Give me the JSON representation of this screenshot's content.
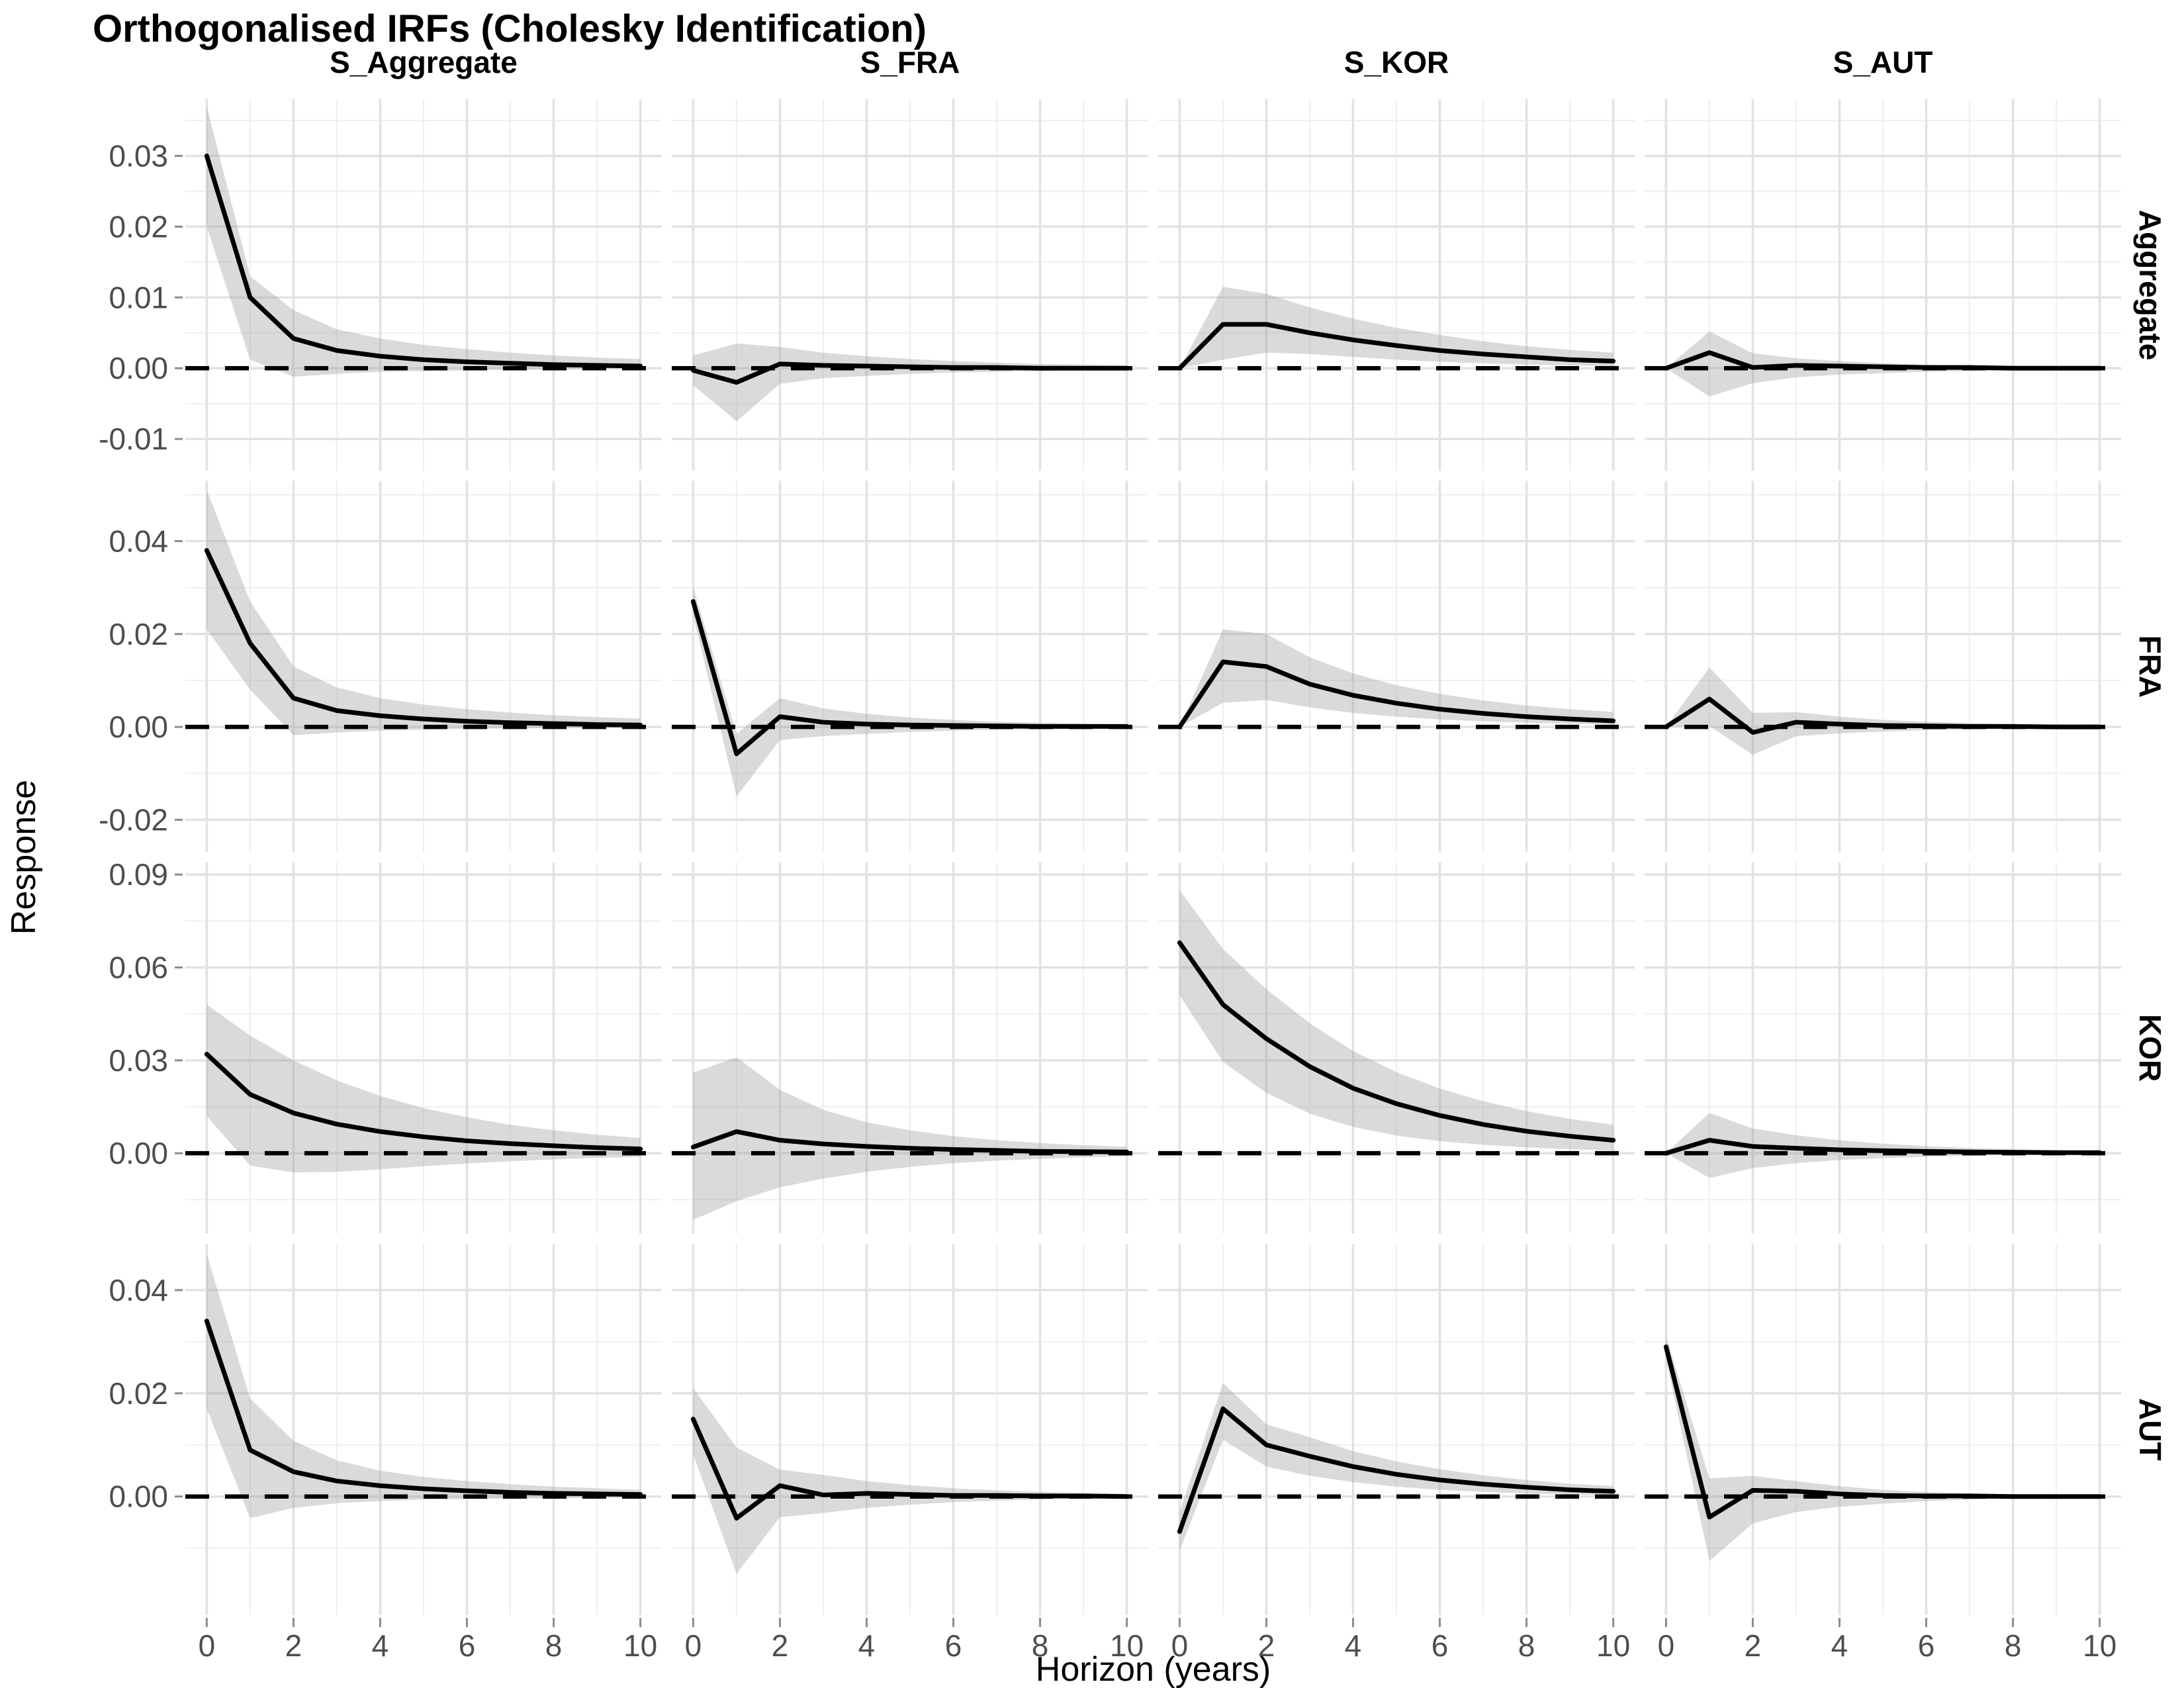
{
  "chart_data": {
    "type": "line",
    "title": "Orthogonalised IRFs (Cholesky Identification)",
    "xlabel": "Horizon (years)",
    "ylabel": "Response",
    "legend": "none",
    "grid": "on",
    "line_color": "#000000",
    "band_color": "#D9D9D9",
    "zero_line_style": "dashed",
    "x": [
      0,
      1,
      2,
      3,
      4,
      5,
      6,
      7,
      8,
      9,
      10
    ],
    "x_ticks": [
      0,
      2,
      4,
      6,
      8,
      10
    ],
    "xlim": [
      0,
      10
    ],
    "col_facets": [
      "S_Aggregate",
      "S_FRA",
      "S_KOR",
      "S_AUT"
    ],
    "row_facets": [
      "Aggregate",
      "FRA",
      "KOR",
      "AUT"
    ],
    "rows": [
      {
        "name": "Aggregate",
        "ylim": [
          -0.0145,
          0.038
        ],
        "ticks": [
          0.03,
          0.02,
          0.01,
          0.0,
          -0.01
        ],
        "panels": [
          {
            "shock": "S_Aggregate",
            "irf": [
              0.03,
              0.01,
              0.0042,
              0.0025,
              0.0017,
              0.0012,
              0.0009,
              0.0007,
              0.0005,
              0.0004,
              0.0003
            ],
            "upper": [
              0.037,
              0.013,
              0.0082,
              0.0055,
              0.0042,
              0.0033,
              0.0027,
              0.0022,
              0.0018,
              0.0015,
              0.0013
            ],
            "lower": [
              0.02,
              0.0012,
              -0.0012,
              -0.0008,
              -0.0005,
              -0.0004,
              -0.0003,
              -0.0002,
              -0.0002,
              -0.0001,
              -0.0001
            ]
          },
          {
            "shock": "S_FRA",
            "irf": [
              -0.0003,
              -0.002,
              0.0006,
              0.0004,
              0.0003,
              0.0002,
              0.0001,
              0.0001,
              0.0,
              0.0,
              0.0
            ],
            "upper": [
              0.0018,
              0.0035,
              0.003,
              0.0022,
              0.0017,
              0.0013,
              0.001,
              0.0008,
              0.0006,
              0.0005,
              0.0004
            ],
            "lower": [
              -0.0024,
              -0.0075,
              -0.0022,
              -0.0014,
              -0.0011,
              -0.0008,
              -0.0006,
              -0.0005,
              -0.0004,
              -0.0003,
              -0.0002
            ]
          },
          {
            "shock": "S_KOR",
            "irf": [
              0.0,
              0.0062,
              0.0062,
              0.005,
              0.004,
              0.0032,
              0.0025,
              0.002,
              0.0016,
              0.0012,
              0.001
            ],
            "upper": [
              0.0,
              0.0115,
              0.0105,
              0.0086,
              0.007,
              0.0057,
              0.0047,
              0.0038,
              0.0031,
              0.0026,
              0.0022
            ],
            "lower": [
              0.0,
              0.0012,
              0.0022,
              0.002,
              0.0016,
              0.0012,
              0.0009,
              0.0007,
              0.0005,
              0.0004,
              0.0003
            ]
          },
          {
            "shock": "S_AUT",
            "irf": [
              0.0,
              0.0022,
              0.0001,
              0.0004,
              0.0003,
              0.0002,
              0.0001,
              0.0001,
              0.0,
              0.0,
              0.0
            ],
            "upper": [
              0.0,
              0.0052,
              0.0021,
              0.0014,
              0.001,
              0.0007,
              0.0005,
              0.0004,
              0.0003,
              0.0002,
              0.0002
            ],
            "lower": [
              0.0,
              -0.004,
              -0.0021,
              -0.0013,
              -0.0009,
              -0.0007,
              -0.0005,
              -0.0004,
              -0.0003,
              -0.0002,
              -0.0002
            ]
          }
        ]
      },
      {
        "name": "FRA",
        "ylim": [
          -0.027,
          0.053
        ],
        "ticks": [
          0.04,
          0.02,
          0.0,
          -0.02
        ],
        "panels": [
          {
            "shock": "S_Aggregate",
            "irf": [
              0.038,
              0.018,
              0.0062,
              0.0035,
              0.0024,
              0.0017,
              0.0012,
              0.0009,
              0.0007,
              0.0005,
              0.0004
            ],
            "upper": [
              0.051,
              0.027,
              0.013,
              0.0085,
              0.0062,
              0.0048,
              0.0038,
              0.0031,
              0.0025,
              0.0021,
              0.0018
            ],
            "lower": [
              0.021,
              0.008,
              -0.0018,
              -0.0012,
              -0.0008,
              -0.0006,
              -0.0004,
              -0.0003,
              -0.0003,
              -0.0002,
              -0.0002
            ]
          },
          {
            "shock": "S_FRA",
            "irf": [
              0.027,
              -0.0058,
              0.0022,
              0.001,
              0.0006,
              0.0004,
              0.0003,
              0.0002,
              0.0001,
              0.0001,
              0.0001
            ],
            "upper": [
              0.03,
              -0.0015,
              0.0062,
              0.004,
              0.0028,
              0.002,
              0.0015,
              0.0011,
              0.0009,
              0.0007,
              0.0005
            ],
            "lower": [
              0.024,
              -0.015,
              -0.0028,
              -0.002,
              -0.0015,
              -0.0011,
              -0.0008,
              -0.0006,
              -0.0005,
              -0.0004,
              -0.0003
            ]
          },
          {
            "shock": "S_KOR",
            "irf": [
              0.0,
              0.014,
              0.013,
              0.0092,
              0.0068,
              0.0051,
              0.0038,
              0.0029,
              0.0022,
              0.0017,
              0.0013
            ],
            "upper": [
              0.0,
              0.021,
              0.02,
              0.015,
              0.0115,
              0.009,
              0.0071,
              0.0057,
              0.0046,
              0.0038,
              0.0032
            ],
            "lower": [
              0.0,
              0.0052,
              0.0058,
              0.0042,
              0.003,
              0.0022,
              0.0016,
              0.0012,
              0.0009,
              0.0007,
              0.0005
            ]
          },
          {
            "shock": "S_AUT",
            "irf": [
              0.0,
              0.006,
              -0.0012,
              0.001,
              0.0006,
              0.0003,
              0.0002,
              0.0001,
              0.0001,
              0.0,
              0.0
            ],
            "upper": [
              0.0,
              0.0128,
              0.003,
              0.0032,
              0.0022,
              0.0015,
              0.0011,
              0.0008,
              0.0006,
              0.0004,
              0.0003
            ],
            "lower": [
              0.0,
              0.0002,
              -0.006,
              -0.002,
              -0.0014,
              -0.001,
              -0.0007,
              -0.0005,
              -0.0004,
              -0.0003,
              -0.0002
            ]
          }
        ]
      },
      {
        "name": "KOR",
        "ylim": [
          -0.026,
          0.094
        ],
        "ticks": [
          0.09,
          0.06,
          0.03,
          0.0
        ],
        "panels": [
          {
            "shock": "S_Aggregate",
            "irf": [
              0.032,
              0.019,
              0.013,
              0.0094,
              0.007,
              0.0053,
              0.004,
              0.0031,
              0.0024,
              0.0018,
              0.0014
            ],
            "upper": [
              0.048,
              0.038,
              0.03,
              0.0235,
              0.0185,
              0.0146,
              0.0116,
              0.0092,
              0.0074,
              0.006,
              0.0049
            ],
            "lower": [
              0.012,
              -0.004,
              -0.0062,
              -0.006,
              -0.0052,
              -0.0042,
              -0.0033,
              -0.0026,
              -0.002,
              -0.0015,
              -0.0012
            ]
          },
          {
            "shock": "S_FRA",
            "irf": [
              0.002,
              0.007,
              0.0042,
              0.003,
              0.0022,
              0.0016,
              0.0012,
              0.0009,
              0.0006,
              0.0005,
              0.0004
            ],
            "upper": [
              0.026,
              0.031,
              0.0205,
              0.014,
              0.01,
              0.0074,
              0.0055,
              0.0042,
              0.0033,
              0.0026,
              0.0021
            ],
            "lower": [
              -0.0215,
              -0.0155,
              -0.011,
              -0.0082,
              -0.006,
              -0.0044,
              -0.0032,
              -0.0024,
              -0.0018,
              -0.0013,
              -0.001
            ]
          },
          {
            "shock": "S_KOR",
            "irf": [
              0.068,
              0.048,
              0.037,
              0.028,
              0.021,
              0.016,
              0.0122,
              0.0093,
              0.0071,
              0.0055,
              0.0042
            ],
            "upper": [
              0.085,
              0.066,
              0.053,
              0.042,
              0.033,
              0.0262,
              0.0209,
              0.0168,
              0.0136,
              0.0111,
              0.0092
            ],
            "lower": [
              0.051,
              0.0295,
              0.0195,
              0.0128,
              0.0085,
              0.0057,
              0.0039,
              0.0027,
              0.0019,
              0.0013,
              0.0009
            ]
          },
          {
            "shock": "S_AUT",
            "irf": [
              0.0,
              0.0042,
              0.0022,
              0.0016,
              0.0011,
              0.0008,
              0.0006,
              0.0004,
              0.0003,
              0.0002,
              0.0002
            ],
            "upper": [
              0.0,
              0.013,
              0.008,
              0.0058,
              0.0042,
              0.0031,
              0.0023,
              0.0017,
              0.0013,
              0.001,
              0.0008
            ],
            "lower": [
              0.0,
              -0.008,
              -0.0048,
              -0.0032,
              -0.0022,
              -0.0016,
              -0.0011,
              -0.0008,
              -0.0006,
              -0.0005,
              -0.0004
            ]
          }
        ]
      },
      {
        "name": "AUT",
        "ylim": [
          -0.023,
          0.049
        ],
        "ticks": [
          0.04,
          0.02,
          0.0
        ],
        "panels": [
          {
            "shock": "S_Aggregate",
            "irf": [
              0.034,
              0.009,
              0.0048,
              0.003,
              0.0021,
              0.0015,
              0.0011,
              0.0008,
              0.0006,
              0.0005,
              0.0004
            ],
            "upper": [
              0.047,
              0.019,
              0.0108,
              0.007,
              0.005,
              0.0038,
              0.003,
              0.0024,
              0.0019,
              0.0016,
              0.0013
            ],
            "lower": [
              0.017,
              -0.0042,
              -0.0022,
              -0.0013,
              -0.0009,
              -0.0006,
              -0.0005,
              -0.0004,
              -0.0003,
              -0.0002,
              -0.0002
            ]
          },
          {
            "shock": "S_FRA",
            "irf": [
              0.015,
              -0.0042,
              0.0021,
              0.0003,
              0.0006,
              0.0004,
              0.0002,
              0.0002,
              0.0001,
              0.0001,
              0.0
            ],
            "upper": [
              0.021,
              0.0095,
              0.0052,
              0.0042,
              0.003,
              0.0022,
              0.0016,
              0.0012,
              0.0009,
              0.0007,
              0.0005
            ],
            "lower": [
              0.0082,
              -0.015,
              -0.004,
              -0.0032,
              -0.0022,
              -0.0016,
              -0.0011,
              -0.0008,
              -0.0006,
              -0.0004,
              -0.0003
            ]
          },
          {
            "shock": "S_KOR",
            "irf": [
              -0.0068,
              0.017,
              0.01,
              0.0078,
              0.0058,
              0.0043,
              0.0032,
              0.0024,
              0.0018,
              0.0013,
              0.001
            ],
            "upper": [
              -0.003,
              0.022,
              0.014,
              0.0115,
              0.0088,
              0.0068,
              0.0053,
              0.0041,
              0.0032,
              0.0025,
              0.002
            ],
            "lower": [
              -0.0105,
              0.011,
              0.0058,
              0.004,
              0.0028,
              0.0019,
              0.0013,
              0.0009,
              0.0006,
              0.0004,
              0.0003
            ]
          },
          {
            "shock": "S_AUT",
            "irf": [
              0.029,
              -0.004,
              0.0012,
              0.001,
              0.0005,
              0.0002,
              0.0001,
              0.0001,
              0.0,
              0.0,
              0.0
            ],
            "upper": [
              0.031,
              0.0035,
              0.004,
              0.003,
              0.002,
              0.0013,
              0.0009,
              0.0006,
              0.0004,
              0.0003,
              0.0002
            ],
            "lower": [
              0.0265,
              -0.0125,
              -0.0052,
              -0.003,
              -0.002,
              -0.0014,
              -0.0009,
              -0.0006,
              -0.0004,
              -0.0003,
              -0.0002
            ]
          }
        ]
      }
    ]
  }
}
